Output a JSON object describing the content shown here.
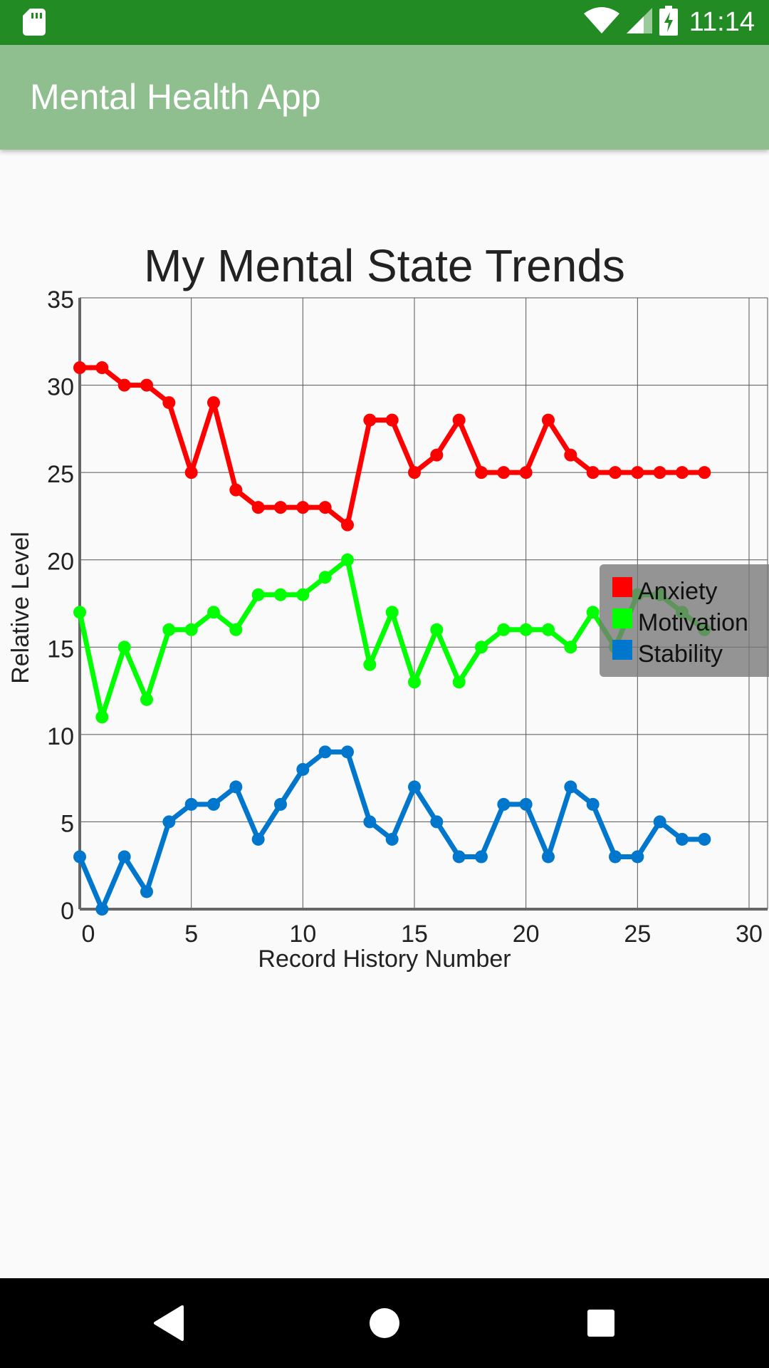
{
  "status_bar": {
    "time": "11:14",
    "icons": [
      "sd-card-icon",
      "wifi-icon",
      "signal-icon",
      "battery-charging-icon"
    ]
  },
  "app_bar": {
    "title": "Mental Health App"
  },
  "chart_data": {
    "type": "line",
    "title": "My Mental State Trends",
    "xlabel": "Record History Number",
    "ylabel": "Relative Level",
    "xlim": [
      0,
      30
    ],
    "ylim": [
      0,
      35
    ],
    "xticks": [
      "0",
      "5",
      "10",
      "15",
      "20",
      "25",
      "30"
    ],
    "yticks": [
      "0",
      "5",
      "10",
      "15",
      "20",
      "25",
      "30",
      "35"
    ],
    "grid": true,
    "legend_position": "right",
    "x": [
      0,
      1,
      2,
      3,
      4,
      5,
      6,
      7,
      8,
      9,
      10,
      11,
      12,
      13,
      14,
      15,
      16,
      17,
      18,
      19,
      20,
      21,
      22,
      23,
      24,
      25,
      26,
      27,
      28
    ],
    "series": [
      {
        "name": "Anxiety",
        "color": "#ff0000",
        "values": [
          31,
          31,
          30,
          30,
          29,
          25,
          29,
          24,
          23,
          23,
          23,
          23,
          22,
          28,
          28,
          25,
          26,
          28,
          25,
          25,
          25,
          28,
          26,
          25,
          25,
          25,
          25,
          25,
          25
        ]
      },
      {
        "name": "Motivation",
        "color": "#00ff00",
        "values": [
          17,
          11,
          15,
          12,
          16,
          16,
          17,
          16,
          18,
          18,
          18,
          19,
          20,
          14,
          17,
          13,
          16,
          13,
          15,
          16,
          16,
          16,
          15,
          17,
          15,
          18,
          18,
          17,
          16
        ]
      },
      {
        "name": "Stability",
        "color": "#0077cc",
        "values": [
          3,
          0,
          3,
          1,
          5,
          6,
          6,
          7,
          4,
          6,
          8,
          9,
          9,
          5,
          4,
          7,
          5,
          3,
          3,
          6,
          6,
          3,
          7,
          6,
          3,
          3,
          5,
          4,
          4
        ]
      }
    ]
  },
  "nav_bar": {
    "icons": [
      "back-icon",
      "home-icon",
      "recents-icon"
    ]
  }
}
